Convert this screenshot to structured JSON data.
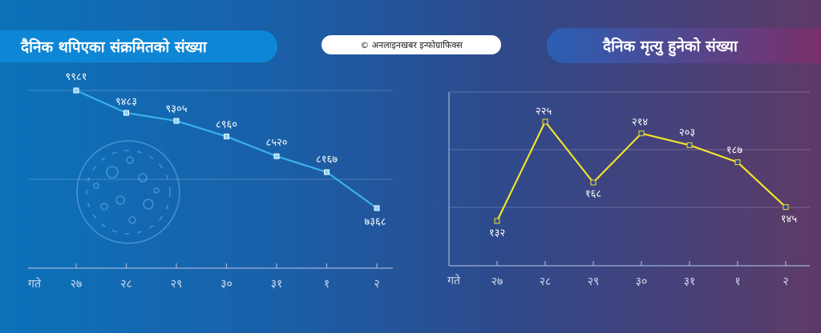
{
  "left_title": "दैनिक थपिएका संक्रमितको संख्या",
  "right_title": "दैनिक मृत्यु हुनेको संख्या",
  "credit": "© अनलाइनखबर इन्फोग्राफिक्स",
  "colors": {
    "left_line": "#3bb0ea",
    "left_marker": "#7fd4ff",
    "right_line": "#f2e32a",
    "right_marker": "#f2e32a"
  },
  "chart_data": [
    {
      "type": "line",
      "title": "दैनिक थपिएका संक्रमितको संख्या",
      "xlabel": "गते",
      "categories": [
        "२७",
        "२८",
        "२९",
        "३०",
        "३१",
        "१",
        "२"
      ],
      "values": [
        9981,
        9483,
        9305,
        8960,
        8520,
        8167,
        7368
      ],
      "value_labels": [
        "९९८१",
        "९४८३",
        "९३०५",
        "८९६०",
        "८५२०",
        "८१६७",
        "७३६८"
      ],
      "grid": true
    },
    {
      "type": "line",
      "title": "दैनिक मृत्यु हुनेको संख्या",
      "xlabel": "गते",
      "categories": [
        "२७",
        "२८",
        "२९",
        "३०",
        "३१",
        "१",
        "२"
      ],
      "values": [
        132,
        225,
        168,
        214,
        203,
        187,
        145
      ],
      "value_labels": [
        "१३२",
        "२२५",
        "१६८",
        "२१४",
        "२०३",
        "१८७",
        "१४५"
      ],
      "grid": true
    }
  ]
}
